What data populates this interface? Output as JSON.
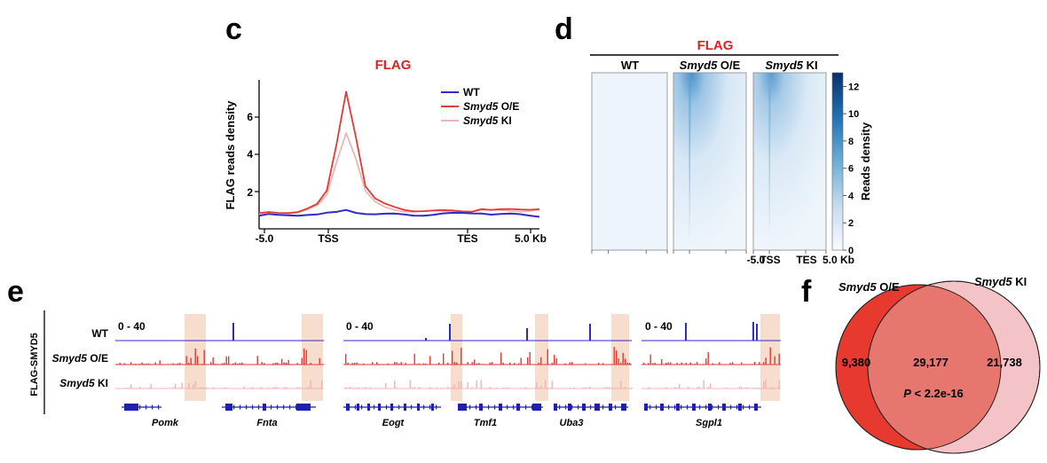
{
  "panels": {
    "c": {
      "letter": "c",
      "chart_title": "FLAG",
      "ylabel": "FLAG reads density",
      "xticks": [
        "-5.0",
        "TSS",
        "TES",
        "5.0 Kb"
      ],
      "yticks": [
        "2",
        "4",
        "6"
      ]
    },
    "d": {
      "letter": "d",
      "header": "FLAG",
      "cols": [
        {
          "italic": "",
          "plain": "WT"
        },
        {
          "italic": "Smyd5",
          "plain": " O/E"
        },
        {
          "italic": "Smyd5",
          "plain": " KI"
        }
      ],
      "colorbar_ticks": [
        "0",
        "2",
        "4",
        "6",
        "8",
        "10",
        "12"
      ],
      "colorbar_label": "Reads density",
      "xticks": [
        "-5.0",
        "TSS",
        "TES",
        "5.0 Kb"
      ]
    },
    "e": {
      "letter": "e",
      "side_label": "FLAG-SMYD5",
      "tracks": [
        {
          "italic": "",
          "plain": "WT"
        },
        {
          "italic": "Smyd5",
          "plain": " O/E"
        },
        {
          "italic": "Smyd5",
          "plain": " KI"
        }
      ],
      "range_label": "0 - 40",
      "genes": [
        "Pomk",
        "Fnta",
        "Eogt",
        "Tmf1",
        "Uba3",
        "Sgpl1"
      ]
    },
    "f": {
      "letter": "f",
      "left_label": {
        "italic": "Smyd5",
        "plain": " O/E"
      },
      "right_label": {
        "italic": "Smyd5",
        "plain": " KI"
      },
      "left_only": "9,380",
      "overlap": "29,177",
      "right_only": "21,738",
      "pvalue_p": "P",
      "pvalue_rest": " < 2.2e-16"
    }
  },
  "chart_data": [
    {
      "type": "line",
      "title": "FLAG",
      "xlabel": "",
      "ylabel": "FLAG reads density",
      "x_labels": [
        "-5.0",
        "TSS",
        "TES",
        "5.0 Kb"
      ],
      "ylim": [
        0,
        8
      ],
      "legend": "top-right",
      "series": [
        {
          "name": "WT",
          "italic": "",
          "plain": "WT",
          "color": "#2b2bd0",
          "values": [
            0.7,
            0.75,
            0.7,
            0.72,
            0.75,
            0.8,
            0.78,
            0.82,
            0.85,
            1.0,
            0.9,
            0.85,
            0.8,
            0.78,
            0.76,
            0.75,
            0.74,
            0.76,
            0.78,
            0.8,
            0.8,
            0.82,
            0.85,
            0.88,
            0.8,
            0.78,
            0.76,
            0.74,
            0.72,
            0.7
          ]
        },
        {
          "name": "Smyd5 O/E",
          "italic": "Smyd5",
          "plain": " O/E",
          "color": "#e33a32",
          "values": [
            0.8,
            0.85,
            0.85,
            0.9,
            0.95,
            1.1,
            1.3,
            2.0,
            4.5,
            7.4,
            5.0,
            2.3,
            1.6,
            1.3,
            1.15,
            1.05,
            1.0,
            0.98,
            0.96,
            0.95,
            0.95,
            0.96,
            0.98,
            1.1,
            1.0,
            1.0,
            1.02,
            1.05,
            1.08,
            1.1
          ]
        },
        {
          "name": "Smyd5 KI",
          "italic": "Smyd5",
          "plain": " KI",
          "color": "#f1b4b4",
          "values": [
            0.75,
            0.8,
            0.8,
            0.85,
            0.9,
            1.0,
            1.2,
            1.8,
            3.6,
            5.2,
            3.8,
            2.0,
            1.4,
            1.15,
            1.05,
            0.98,
            0.95,
            0.93,
            0.92,
            0.92,
            0.92,
            0.93,
            0.95,
            1.0,
            0.97,
            0.96,
            0.97,
            0.98,
            1.0,
            1.02
          ]
        }
      ]
    },
    {
      "type": "heatmap",
      "title": "FLAG",
      "columns": [
        "WT",
        "Smyd5 O/E",
        "Smyd5 KI"
      ],
      "x_labels": [
        "-5.0",
        "TSS",
        "TES",
        "5.0 Kb"
      ],
      "colorbar_label": "Reads density",
      "colorbar_range": [
        0,
        13
      ],
      "column_max_intensity": [
        0.5,
        12,
        11
      ]
    },
    {
      "type": "venn",
      "sets": [
        "Smyd5 O/E",
        "Smyd5 KI"
      ],
      "counts": {
        "left_only": 9380,
        "overlap": 29177,
        "right_only": 21738
      },
      "pvalue": "P < 2.2e-16",
      "colors": {
        "left": "#e8392e",
        "right": "#f4c3c8",
        "overlap": "#e7766f"
      }
    }
  ],
  "colors": {
    "red": "#e02020",
    "wt_blue": "#2b2bd0",
    "oe_red": "#e33a32",
    "ki_pink": "#f1b4b4",
    "highlight": "#f6d9c8",
    "gene_blue": "#1f1fb0",
    "heat_dark": "#08306b"
  }
}
